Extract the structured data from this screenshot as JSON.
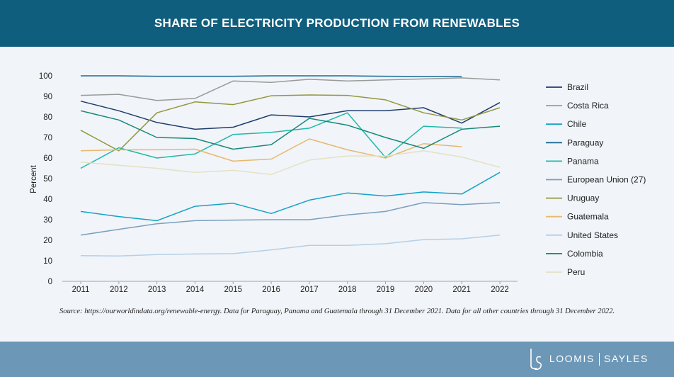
{
  "header": {
    "title": "SHARE OF ELECTRICITY PRODUCTION FROM RENEWABLES"
  },
  "source": {
    "text": "Source: https://ourworldindata.org/renewable-energy. Data for Paraguay, Panama and Guatemala through 31 December 2021. Data for all other countries through 31 December 2022."
  },
  "footer": {
    "brand_left": "LOOMIS",
    "brand_right": "SAYLES",
    "logo_glyph": "LS"
  },
  "chart_data": {
    "type": "line",
    "title": "SHARE OF ELECTRICITY PRODUCTION FROM RENEWABLES",
    "xlabel": "",
    "ylabel": "Percent",
    "ylim": [
      0,
      100
    ],
    "yticks": [
      0,
      10,
      20,
      30,
      40,
      50,
      60,
      70,
      80,
      90,
      100
    ],
    "grid": false,
    "legend_position": "right",
    "x": [
      "2011",
      "2012",
      "2013",
      "2014",
      "2015",
      "2016",
      "2017",
      "2018",
      "2019",
      "2020",
      "2021",
      "2022"
    ],
    "series": [
      {
        "name": "Brazil",
        "color": "#1f3d6b",
        "values": [
          87.7,
          83,
          77.3,
          74,
          75,
          81,
          80,
          83,
          83,
          84.5,
          77,
          87
        ]
      },
      {
        "name": "Costa Rica",
        "color": "#9a9a9a",
        "values": [
          90.5,
          91,
          88,
          89,
          97.5,
          96.8,
          98.3,
          97.5,
          98,
          98.5,
          99,
          98
        ]
      },
      {
        "name": "Chile",
        "color": "#13a3c4",
        "values": [
          34,
          31.5,
          29.5,
          36.5,
          38,
          33,
          39.5,
          43,
          41.5,
          43.5,
          42.5,
          53
        ]
      },
      {
        "name": "Paraguay",
        "color": "#1a6b92",
        "values": [
          100,
          100,
          99.8,
          99.8,
          99.8,
          100,
          100,
          100,
          99.8,
          99.7,
          99.7,
          null
        ]
      },
      {
        "name": "Panama",
        "color": "#1fbaa8",
        "values": [
          55,
          65,
          60,
          62,
          71.5,
          72.5,
          74.5,
          82,
          60.3,
          75.5,
          74.5,
          null
        ]
      },
      {
        "name": "European Union (27)",
        "color": "#7b9fbd",
        "values": [
          22.5,
          25.3,
          28,
          29.5,
          29.8,
          30,
          30,
          32.3,
          34,
          38.3,
          37.3,
          38.3
        ]
      },
      {
        "name": "Uruguay",
        "color": "#93983f",
        "values": [
          73.5,
          63.5,
          82,
          87.3,
          86,
          90.3,
          90.7,
          90.5,
          88.3,
          82,
          78.5,
          84.5
        ]
      },
      {
        "name": "Guatemala",
        "color": "#e8b86b",
        "values": [
          63.5,
          64,
          64,
          64.3,
          58.5,
          59.5,
          69.3,
          64,
          60,
          67,
          65.5,
          null
        ]
      },
      {
        "name": "United States",
        "color": "#b6cfe6",
        "values": [
          12.5,
          12.3,
          13,
          13.3,
          13.5,
          15.3,
          17.5,
          17.5,
          18.3,
          20.3,
          20.7,
          22.5
        ]
      },
      {
        "name": "Colombia",
        "color": "#178a78",
        "values": [
          83,
          78.5,
          70,
          69.5,
          64.3,
          66.5,
          79.3,
          76,
          70,
          64.7,
          74,
          75.5
        ]
      },
      {
        "name": "Peru",
        "color": "#e3e2c3",
        "values": [
          58,
          56.5,
          55,
          53,
          54,
          52,
          59,
          61,
          61,
          63.5,
          60.5,
          55.5
        ]
      }
    ]
  }
}
